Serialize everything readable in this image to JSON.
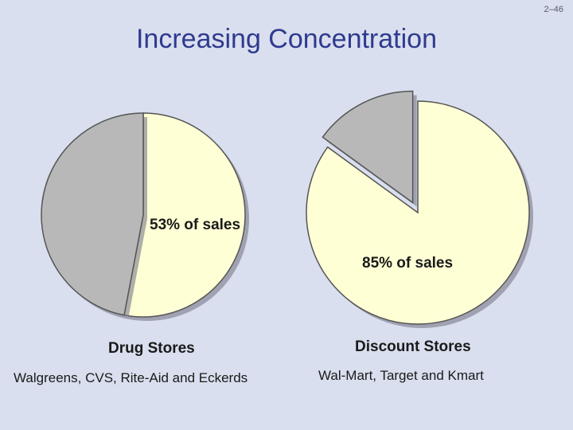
{
  "slide_number": "2–46",
  "title": "Increasing Concentration",
  "colors": {
    "share": "#ffffd6",
    "rest": "#b8b8b8",
    "outline": "#555555",
    "title": "#2f3a8f"
  },
  "chart_data": [
    {
      "type": "pie",
      "title": "Drug Stores",
      "subtitle": "Walgreens, CVS, Rite-Aid and Eckerds",
      "annotation": "53% of sales",
      "slices": [
        {
          "value": 53,
          "color": "#ffffd6",
          "exploded": false
        },
        {
          "value": 47,
          "color": "#b8b8b8",
          "exploded": false
        }
      ]
    },
    {
      "type": "pie",
      "title": "Discount Stores",
      "subtitle": "Wal-Mart, Target and Kmart",
      "annotation": "85% of sales",
      "slices": [
        {
          "value": 85,
          "color": "#ffffd6",
          "exploded": false
        },
        {
          "value": 15,
          "color": "#b8b8b8",
          "exploded": true
        }
      ]
    }
  ]
}
